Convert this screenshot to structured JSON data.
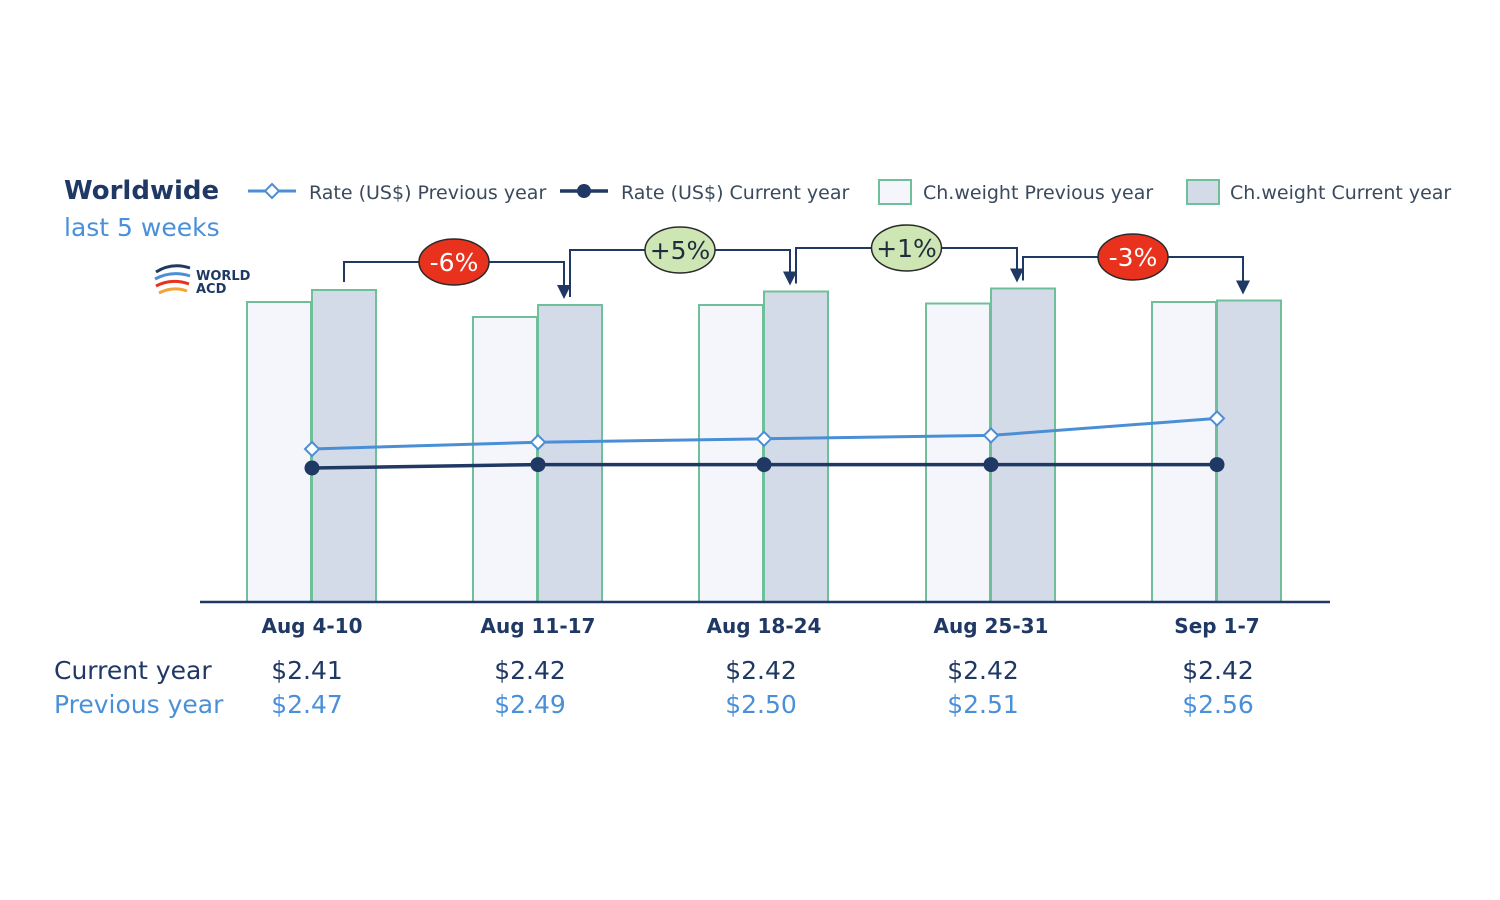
{
  "chart_data": {
    "type": "bar",
    "title": "Worldwide",
    "subtitle": "last 5 weeks",
    "categories": [
      "Aug 4-10",
      "Aug 11-17",
      "Aug 18-24",
      "Aug 25-31",
      "Sep 1-7"
    ],
    "bar_series": [
      {
        "name": "Ch.weight Previous year",
        "values": [
          100,
          95,
          99,
          99.5,
          100
        ],
        "color": "#f4f6fb",
        "stroke": "#6fbf9a"
      },
      {
        "name": "Ch.weight Current year",
        "values": [
          104,
          99,
          103.5,
          104.5,
          100.5
        ],
        "color": "#d4dbe8",
        "stroke": "#6fbf9a"
      }
    ],
    "line_series": [
      {
        "name": "Rate (US$) Previous year",
        "values": [
          2.47,
          2.49,
          2.5,
          2.51,
          2.56
        ],
        "color": "#4a8fd6",
        "marker": "diamond-open"
      },
      {
        "name": "Rate (US$) Current year",
        "values": [
          2.41,
          2.42,
          2.42,
          2.42,
          2.42
        ],
        "color": "#1f3864",
        "marker": "circle-filled"
      }
    ],
    "changes": [
      {
        "label": "-6%",
        "color": "#e8321e",
        "text_color": "#ffffff"
      },
      {
        "label": "+5%",
        "color": "#cde6b4",
        "text_color": "#1f2d3d"
      },
      {
        "label": "+1%",
        "color": "#cde6b4",
        "text_color": "#1f2d3d"
      },
      {
        "label": "-3%",
        "color": "#e8321e",
        "text_color": "#ffffff"
      }
    ],
    "table": {
      "current_label": "Current year",
      "previous_label": "Previous year",
      "current_values": [
        "$2.41",
        "$2.42",
        "$2.42",
        "$2.42",
        "$2.42"
      ],
      "previous_values": [
        "$2.47",
        "$2.49",
        "$2.50",
        "$2.51",
        "$2.56"
      ]
    },
    "legend_placement": "top",
    "grid": false
  },
  "logo": {
    "line1": "WORLD",
    "line2": "ACD"
  }
}
